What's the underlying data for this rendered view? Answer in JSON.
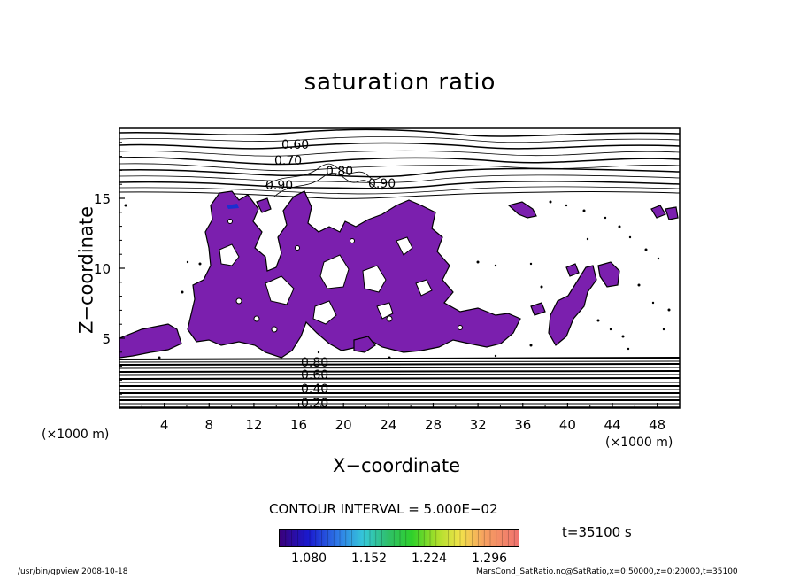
{
  "chart_data": {
    "type": "heatmap",
    "title": "saturation ratio",
    "xlabel": "X−coordinate",
    "ylabel": "Z−coordinate",
    "x_unit_left": "(×1000 m)",
    "x_unit_right": "(×1000 m)",
    "xlim": [
      0,
      50
    ],
    "ylim": [
      0,
      20
    ],
    "x_ticks": [
      4,
      8,
      12,
      16,
      20,
      24,
      28,
      32,
      36,
      40,
      44,
      48
    ],
    "y_ticks": [
      5,
      10,
      15
    ],
    "contour_labels": [
      "0.60",
      "0.70",
      "0.80",
      "0.90",
      "0.90",
      "0.80",
      "0.60",
      "0.40",
      "0.20"
    ],
    "contour_interval": "CONTOUR INTERVAL = 5.000E−02",
    "colorbar": {
      "ticks": [
        "1.080",
        "1.152",
        "1.224",
        "1.296"
      ],
      "tick_values": [
        1.08,
        1.152,
        1.224,
        1.296
      ],
      "range": [
        1.044,
        1.332
      ]
    },
    "filled_color": "#7b1fae",
    "grid": false,
    "time_label": "t=35100 s",
    "footer_left": "/usr/bin/gpview   2008-10-18",
    "footer_right": "MarsCond_SatRatio.nc@SatRatio,x=0:50000,z=0:20000,t=35100"
  }
}
